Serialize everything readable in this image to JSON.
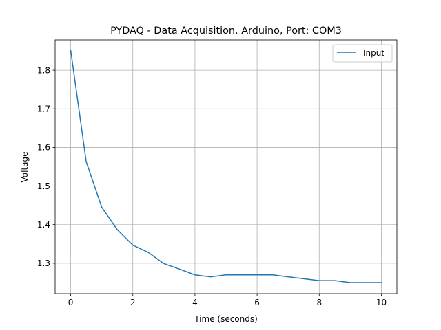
{
  "chart_data": {
    "type": "line",
    "title": "PYDAQ - Data Acquisition. Arduino, Port: COM3",
    "xlabel": "Time (seconds)",
    "ylabel": "Voltage",
    "xlim": [
      -0.5,
      10.5
    ],
    "ylim": [
      1.2215,
      1.8785
    ],
    "x_ticks": [
      0,
      2,
      4,
      6,
      8,
      10
    ],
    "y_ticks": [
      1.3,
      1.4,
      1.5,
      1.6,
      1.7,
      1.8
    ],
    "x_tick_labels": [
      "0",
      "2",
      "4",
      "6",
      "8",
      "10"
    ],
    "y_tick_labels": [
      "1.3",
      "1.4",
      "1.5",
      "1.6",
      "1.7",
      "1.8"
    ],
    "grid": true,
    "legend_position": "top-right",
    "series": [
      {
        "name": "Input",
        "color": "#1f77b4",
        "x": [
          0,
          0.5,
          1,
          1.5,
          2,
          2.5,
          3,
          3.5,
          4,
          4.5,
          5,
          5.5,
          6,
          6.5,
          7,
          7.5,
          8,
          8.5,
          9,
          9.5,
          10
        ],
        "y": [
          1.852,
          1.563,
          1.445,
          1.387,
          1.347,
          1.328,
          1.299,
          1.285,
          1.27,
          1.265,
          1.27,
          1.27,
          1.27,
          1.27,
          1.265,
          1.26,
          1.255,
          1.255,
          1.25,
          1.25,
          1.25
        ]
      }
    ]
  }
}
